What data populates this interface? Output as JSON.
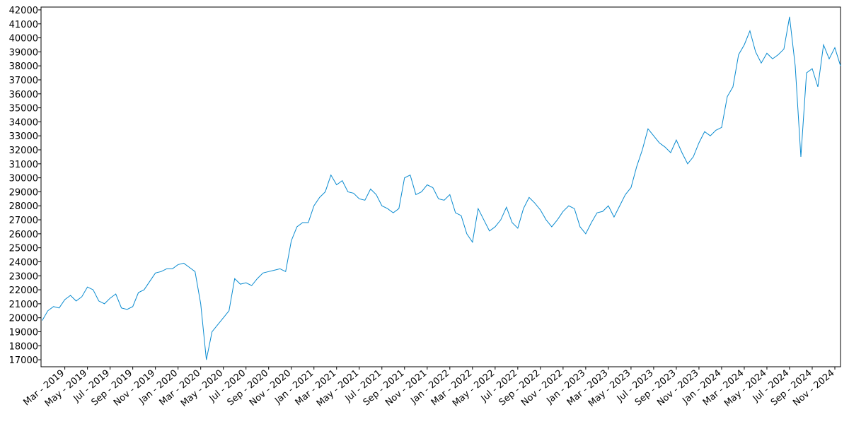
{
  "chart_data": {
    "type": "line",
    "color": "#0a8bd0",
    "x": [
      0,
      0.5,
      1,
      1.5,
      2,
      2.5,
      3,
      3.5,
      4,
      4.5,
      5,
      5.5,
      6,
      6.5,
      7,
      7.5,
      8,
      8.5,
      9,
      9.5,
      10,
      10.5,
      11,
      11.5,
      12,
      12.5,
      13,
      13.5,
      14,
      14.5,
      15,
      15.5,
      16,
      16.5,
      17,
      17.5,
      18,
      18.5,
      19,
      19.5,
      20,
      20.5,
      21,
      21.5,
      22,
      22.5,
      23,
      23.5,
      24,
      24.5,
      25,
      25.5,
      26,
      26.5,
      27,
      27.5,
      28,
      28.5,
      29,
      29.5,
      30,
      30.5,
      31,
      31.5,
      32,
      32.5,
      33,
      33.5,
      34,
      34.5,
      35,
      35.5,
      36,
      36.5,
      37,
      37.5,
      38,
      38.5,
      39,
      39.5,
      40,
      40.5,
      41,
      41.5,
      42,
      42.5,
      43,
      43.5,
      44,
      44.5,
      45,
      45.5,
      46,
      46.5,
      47,
      47.5,
      48,
      48.5,
      49,
      49.5,
      50,
      50.5,
      51,
      51.5,
      52,
      52.5,
      53,
      53.5,
      54,
      54.5,
      55,
      55.5,
      56,
      56.5,
      57,
      57.5,
      58,
      58.5,
      59,
      59.5,
      60,
      60.5,
      61,
      61.5,
      62,
      62.5,
      63,
      63.5,
      64,
      64.5,
      65,
      65.5,
      66,
      66.5,
      67,
      67.5,
      68,
      68.5,
      69,
      69.5,
      70,
      70.5
    ],
    "values": [
      19800,
      20500,
      20800,
      20700,
      21300,
      21600,
      21200,
      21500,
      22200,
      22000,
      21200,
      21000,
      21400,
      21700,
      20700,
      20600,
      20800,
      21800,
      22000,
      22600,
      23200,
      23300,
      23500,
      23500,
      23800,
      23900,
      23600,
      23300,
      21000,
      17000,
      19000,
      19500,
      20000,
      20500,
      22800,
      22400,
      22500,
      22300,
      22800,
      23200,
      23300,
      23400,
      23500,
      23300,
      25500,
      26500,
      26800,
      26800,
      28000,
      28600,
      29000,
      30200,
      29500,
      29800,
      29000,
      28900,
      28500,
      28400,
      29200,
      28800,
      28000,
      27800,
      27500,
      27800,
      30000,
      30200,
      28800,
      29000,
      29500,
      29300,
      28500,
      28400,
      28800,
      27500,
      27300,
      26000,
      25400,
      27800,
      27000,
      26200,
      26500,
      27000,
      27900,
      26800,
      26400,
      27800,
      28600,
      28200,
      27700,
      27000,
      26500,
      27000,
      27600,
      28000,
      27800,
      26500,
      26000,
      26800,
      27500,
      27600,
      28000,
      27200,
      28000,
      28800,
      29300,
      30800,
      32000,
      33500,
      33000,
      32500,
      32200,
      31800,
      32700,
      31800,
      31000,
      31500,
      32500,
      33300,
      33000,
      33400,
      33600,
      35800,
      36500,
      38800,
      39500,
      40500,
      39000,
      38200,
      38900,
      38500,
      38800,
      39200,
      41500,
      38000,
      31500,
      37500,
      37800,
      36500,
      39500,
      38500,
      39300,
      38000
    ],
    "xlim": [
      -0.1,
      70.5
    ],
    "ylim": [
      16500,
      42200
    ],
    "yticks": [
      17000,
      18000,
      19000,
      20000,
      21000,
      22000,
      23000,
      24000,
      25000,
      26000,
      27000,
      28000,
      29000,
      30000,
      31000,
      32000,
      33000,
      34000,
      35000,
      36000,
      37000,
      38000,
      39000,
      40000,
      41000,
      42000
    ],
    "xticks": [
      {
        "value": 2,
        "label": "Mar - 2019"
      },
      {
        "value": 4,
        "label": "May - 2019"
      },
      {
        "value": 6,
        "label": "Jul - 2019"
      },
      {
        "value": 8,
        "label": "Sep - 2019"
      },
      {
        "value": 10,
        "label": "Nov - 2019"
      },
      {
        "value": 12,
        "label": "Jan - 2020"
      },
      {
        "value": 14,
        "label": "Mar - 2020"
      },
      {
        "value": 16,
        "label": "May - 2020"
      },
      {
        "value": 18,
        "label": "Jul - 2020"
      },
      {
        "value": 20,
        "label": "Sep - 2020"
      },
      {
        "value": 22,
        "label": "Nov - 2020"
      },
      {
        "value": 24,
        "label": "Jan - 2021"
      },
      {
        "value": 26,
        "label": "Mar - 2021"
      },
      {
        "value": 28,
        "label": "May - 2021"
      },
      {
        "value": 30,
        "label": "Jul - 2021"
      },
      {
        "value": 32,
        "label": "Sep - 2021"
      },
      {
        "value": 34,
        "label": "Nov - 2021"
      },
      {
        "value": 36,
        "label": "Jan - 2022"
      },
      {
        "value": 38,
        "label": "Mar - 2022"
      },
      {
        "value": 40,
        "label": "May - 2022"
      },
      {
        "value": 42,
        "label": "Jul - 2022"
      },
      {
        "value": 44,
        "label": "Sep - 2022"
      },
      {
        "value": 46,
        "label": "Nov - 2022"
      },
      {
        "value": 48,
        "label": "Jan - 2023"
      },
      {
        "value": 50,
        "label": "Mar - 2023"
      },
      {
        "value": 52,
        "label": "May - 2023"
      },
      {
        "value": 54,
        "label": "Jul - 2023"
      },
      {
        "value": 56,
        "label": "Sep - 2023"
      },
      {
        "value": 58,
        "label": "Nov - 2023"
      },
      {
        "value": 60,
        "label": "Jan - 2024"
      },
      {
        "value": 62,
        "label": "Mar - 2024"
      },
      {
        "value": 64,
        "label": "May - 2024"
      },
      {
        "value": 66,
        "label": "Jul - 2024"
      },
      {
        "value": 68,
        "label": "Sep - 2024"
      },
      {
        "value": 70,
        "label": "Nov - 2024"
      }
    ]
  }
}
